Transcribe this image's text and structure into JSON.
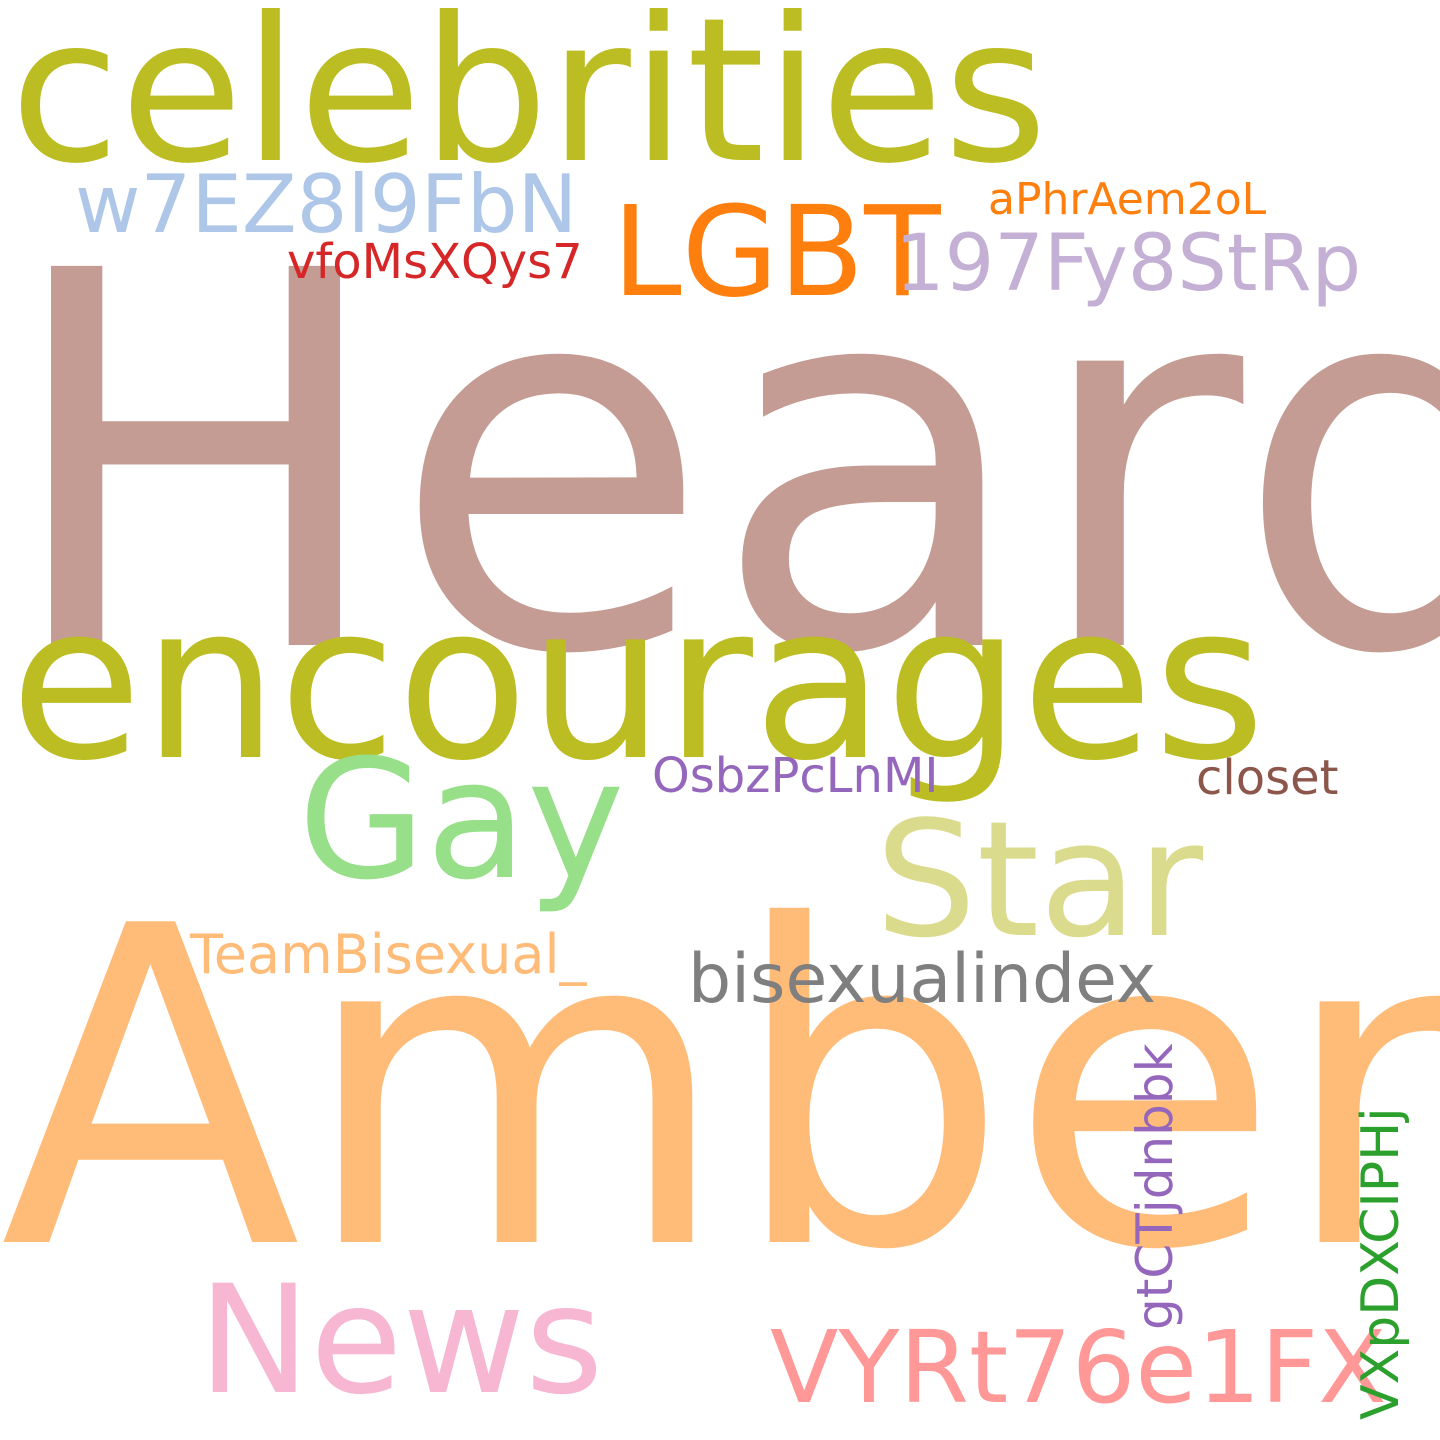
{
  "words": [
    {
      "text": "celebrities",
      "color": "#bcbd22",
      "orientation": "horizontal"
    },
    {
      "text": "Heard",
      "color": "#c49c94",
      "orientation": "horizontal"
    },
    {
      "text": "encourages",
      "color": "#bcbd22",
      "orientation": "horizontal"
    },
    {
      "text": "Amber",
      "color": "#ffbb78",
      "orientation": "horizontal"
    },
    {
      "text": "w7EZ8l9FbN",
      "color": "#aec7e8",
      "orientation": "horizontal"
    },
    {
      "text": "LGBT",
      "color": "#ff7f0e",
      "orientation": "horizontal"
    },
    {
      "text": "aPhrAem2oL",
      "color": "#ff7f0e",
      "orientation": "horizontal"
    },
    {
      "text": "vfoMsXQys7",
      "color": "#d62728",
      "orientation": "horizontal"
    },
    {
      "text": "197Fy8StRp",
      "color": "#c5b0d5",
      "orientation": "horizontal"
    },
    {
      "text": "Gay",
      "color": "#98df8a",
      "orientation": "horizontal"
    },
    {
      "text": "Star",
      "color": "#dbdb8d",
      "orientation": "horizontal"
    },
    {
      "text": "OsbzPcLnMI",
      "color": "#9467bd",
      "orientation": "horizontal"
    },
    {
      "text": "closet",
      "color": "#8c564b",
      "orientation": "horizontal"
    },
    {
      "text": "TeamBisexual_",
      "color": "#ffbb78",
      "orientation": "horizontal"
    },
    {
      "text": "bisexualindex",
      "color": "#7f7f7f",
      "orientation": "horizontal"
    },
    {
      "text": "News",
      "color": "#f7b6d2",
      "orientation": "horizontal"
    },
    {
      "text": "VYRt76e1FX",
      "color": "#ff9896",
      "orientation": "horizontal"
    },
    {
      "text": "gtCTjdnbbk",
      "color": "#9467bd",
      "orientation": "vertical"
    },
    {
      "text": "VXpDXCIPHj",
      "color": "#2ca02c",
      "orientation": "vertical"
    }
  ]
}
